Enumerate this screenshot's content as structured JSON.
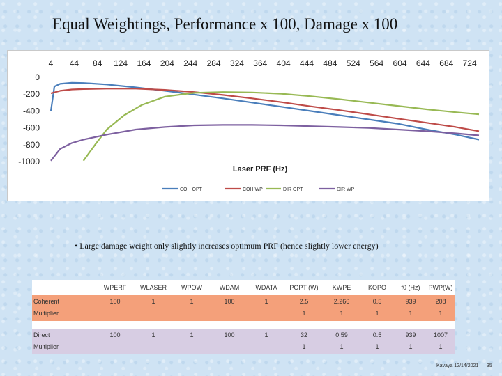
{
  "slide": {
    "title": "Equal Weightings, Performance x 100, Damage x 100",
    "bullet": "• Large damage weight only slightly increases optimum PRF (hence slightly lower energy)",
    "footer": "Kavaya 12/14/2021",
    "page": "35"
  },
  "chart_data": {
    "type": "line",
    "title": "",
    "xlabel": "Laser PRF (Hz)",
    "ylabel": "",
    "xlim": [
      4,
      740
    ],
    "ylim": [
      -1000,
      0
    ],
    "x_ticks": [
      "4",
      "44",
      "84",
      "124",
      "164",
      "204",
      "244",
      "284",
      "324",
      "364",
      "404",
      "444",
      "484",
      "524",
      "564",
      "604",
      "644",
      "684",
      "724"
    ],
    "y_ticks": [
      "0",
      "-200",
      "-400",
      "-600",
      "-800",
      "-1000"
    ],
    "x_tick_values": [
      4,
      44,
      84,
      124,
      164,
      204,
      244,
      284,
      324,
      364,
      404,
      444,
      484,
      524,
      564,
      604,
      644,
      684,
      724
    ],
    "y_tick_values": [
      0,
      -200,
      -400,
      -600,
      -800,
      -1000
    ],
    "legend_position": "bottom",
    "series": [
      {
        "name": "COH OPT",
        "color": "#4a7ebb",
        "x": [
          4,
          10,
          20,
          40,
          60,
          100,
          150,
          200,
          250,
          300,
          350,
          400,
          450,
          500,
          550,
          600,
          650,
          700,
          740
        ],
        "y": [
          -400,
          -110,
          -78,
          -65,
          -68,
          -85,
          -120,
          -160,
          -205,
          -250,
          -300,
          -350,
          -400,
          -450,
          -500,
          -550,
          -620,
          -680,
          -740
        ]
      },
      {
        "name": "COH WP",
        "color": "#be4b48",
        "x": [
          4,
          20,
          40,
          60,
          100,
          150,
          200,
          250,
          300,
          350,
          400,
          450,
          500,
          550,
          600,
          650,
          700,
          740
        ],
        "y": [
          -190,
          -160,
          -145,
          -140,
          -135,
          -135,
          -150,
          -175,
          -210,
          -250,
          -295,
          -345,
          -390,
          -440,
          -490,
          -540,
          -590,
          -640
        ]
      },
      {
        "name": "DIR OPT",
        "color": "#98b954",
        "x": [
          60,
          80,
          100,
          130,
          160,
          200,
          250,
          300,
          350,
          400,
          450,
          500,
          550,
          600,
          650,
          700,
          740
        ],
        "y": [
          -990,
          -800,
          -620,
          -450,
          -330,
          -230,
          -185,
          -175,
          -180,
          -195,
          -225,
          -260,
          -300,
          -340,
          -380,
          -415,
          -440
        ]
      },
      {
        "name": "DIR WP",
        "color": "#7d60a0",
        "x": [
          4,
          20,
          40,
          60,
          100,
          150,
          200,
          250,
          300,
          350,
          400,
          450,
          500,
          550,
          600,
          650,
          700,
          740
        ],
        "y": [
          -990,
          -850,
          -780,
          -740,
          -680,
          -620,
          -590,
          -570,
          -565,
          -565,
          -570,
          -580,
          -590,
          -600,
          -620,
          -640,
          -665,
          -690
        ]
      }
    ]
  },
  "table": {
    "headers": [
      "",
      "WPERF",
      "WLASER",
      "WPOW",
      "WDAM",
      "WDATA",
      "POPT (W)",
      "KWPE",
      "KOPO",
      "f0 (Hz)",
      "PWP(W)"
    ],
    "rows": [
      {
        "label_top": "Coherent",
        "label_bot": "Multiplier",
        "top": [
          "100",
          "1",
          "1",
          "100",
          "1",
          "2.5",
          "2.266",
          "0.5",
          "939",
          "208"
        ],
        "bot": [
          "",
          "",
          "",
          "",
          "",
          "1",
          "1",
          "1",
          "1",
          "1"
        ]
      },
      {
        "label_top": "Direct",
        "label_bot": "Multiplier",
        "top": [
          "100",
          "1",
          "1",
          "100",
          "1",
          "32",
          "0.59",
          "0.5",
          "939",
          "1007"
        ],
        "bot": [
          "",
          "",
          "",
          "",
          "",
          "1",
          "1",
          "1",
          "1",
          "1"
        ]
      }
    ]
  }
}
